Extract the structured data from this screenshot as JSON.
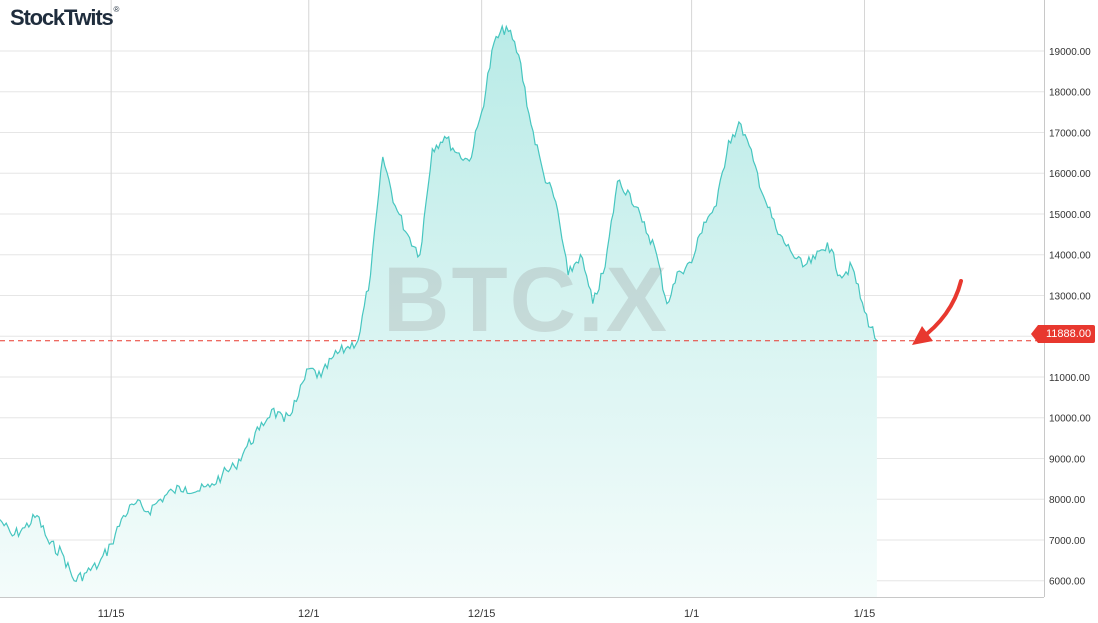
{
  "brand": {
    "logo_text": "StockTwits",
    "logo_mark": "®"
  },
  "watermark_text": "BTC.X",
  "current_price_label": "11888.00",
  "colors": {
    "line": "#47c6c0",
    "fill_top": "#b9ebe7",
    "fill_bottom": "#f4fcfb",
    "marker": "#e8382f",
    "grid": "#e6e6e6"
  },
  "chart_data": {
    "type": "area",
    "title": "",
    "xlabel": "",
    "ylabel": "",
    "ylim": [
      5600,
      20250
    ],
    "x_tick_labels": [
      "11/15",
      "12/1",
      "12/15",
      "1/1",
      "1/15"
    ],
    "y_tick_labels": [
      "6000.00",
      "7000.00",
      "8000.00",
      "9000.00",
      "10000.00",
      "11000.00",
      "12000.00",
      "13000.00",
      "14000.00",
      "15000.00",
      "16000.00",
      "17000.00",
      "18000.00",
      "19000.00"
    ],
    "grid": true,
    "current_price": 11888,
    "annotation": "red arrow pointing to latest price",
    "series": [
      {
        "x": [
          "11/6",
          "11/7",
          "11/8",
          "11/9",
          "11/10",
          "11/11",
          "11/12",
          "11/13",
          "11/14",
          "11/15",
          "11/16",
          "11/17",
          "11/18",
          "11/19",
          "11/20",
          "11/21",
          "11/22",
          "11/23",
          "11/24",
          "11/25",
          "11/26",
          "11/27",
          "11/28",
          "11/29",
          "11/30",
          "12/1",
          "12/2",
          "12/3",
          "12/4",
          "12/5",
          "12/6",
          "12/7",
          "12/8",
          "12/9",
          "12/10",
          "12/11",
          "12/12",
          "12/13",
          "12/14",
          "12/15",
          "12/16",
          "12/17",
          "12/18",
          "12/19",
          "12/20",
          "12/21",
          "12/22",
          "12/23",
          "12/24",
          "12/25",
          "12/26",
          "12/27",
          "12/28",
          "12/29",
          "12/30",
          "12/31",
          "1/1",
          "1/2",
          "1/3",
          "1/4",
          "1/5",
          "1/6",
          "1/7",
          "1/8",
          "1/9",
          "1/10",
          "1/11",
          "1/12",
          "1/13",
          "1/14",
          "1/15",
          "1/16"
        ],
        "y": [
          7500,
          7100,
          7300,
          7600,
          6900,
          6700,
          6000,
          6200,
          6400,
          6900,
          7600,
          7900,
          7700,
          8000,
          8200,
          8300,
          8200,
          8300,
          8600,
          8800,
          9300,
          9700,
          10200,
          9900,
          10400,
          11200,
          11000,
          11500,
          11700,
          11900,
          13500,
          16400,
          15200,
          14500,
          14000,
          16600,
          16900,
          16500,
          16300,
          17500,
          19200,
          19600,
          18900,
          17200,
          16000,
          15300,
          13500,
          14000,
          12800,
          13700,
          15800,
          15500,
          14800,
          14200,
          12800,
          13600,
          13800,
          14800,
          15200,
          16800,
          17200,
          16300,
          15300,
          14500,
          14100,
          13700,
          13900,
          14300,
          13500,
          13700,
          12600,
          11888
        ]
      }
    ]
  }
}
